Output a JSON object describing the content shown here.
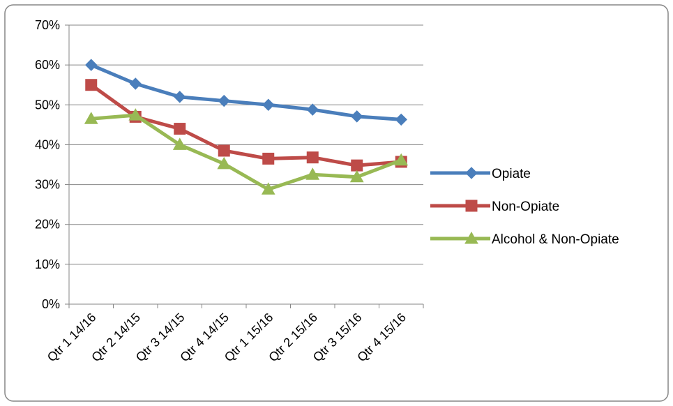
{
  "chart_data": {
    "type": "line",
    "categories": [
      "Qtr 1 14/16",
      "Qtr 2 14/15",
      "Qtr 3 14/15",
      "Qtr 4 14/15",
      "Qtr 1 15/16",
      "Qtr 2 15/16",
      "Qtr 3 15/16",
      "Qtr 4 15/16"
    ],
    "series": [
      {
        "name": "Opiate",
        "values": [
          60,
          55.3,
          52,
          51,
          50,
          48.8,
          47.1,
          46.3
        ],
        "color": "#4a7ebb",
        "marker": "diamond"
      },
      {
        "name": "Non-Opiate",
        "values": [
          55,
          47,
          44,
          38.5,
          36.5,
          36.8,
          34.8,
          35.7
        ],
        "color": "#be4b48",
        "marker": "square"
      },
      {
        "name": "Alcohol & Non-Opiate",
        "values": [
          46.5,
          47.4,
          40,
          35.2,
          28.8,
          32.5,
          31.9,
          36.1
        ],
        "color": "#98b954",
        "marker": "triangle"
      }
    ],
    "y_ticks": [
      "0%",
      "10%",
      "20%",
      "30%",
      "40%",
      "50%",
      "60%",
      "70%"
    ],
    "ylim": [
      0,
      70
    ],
    "y_unit": "%",
    "grid": true,
    "legend_position": "right",
    "title": "",
    "xlabel": "",
    "ylabel": ""
  }
}
